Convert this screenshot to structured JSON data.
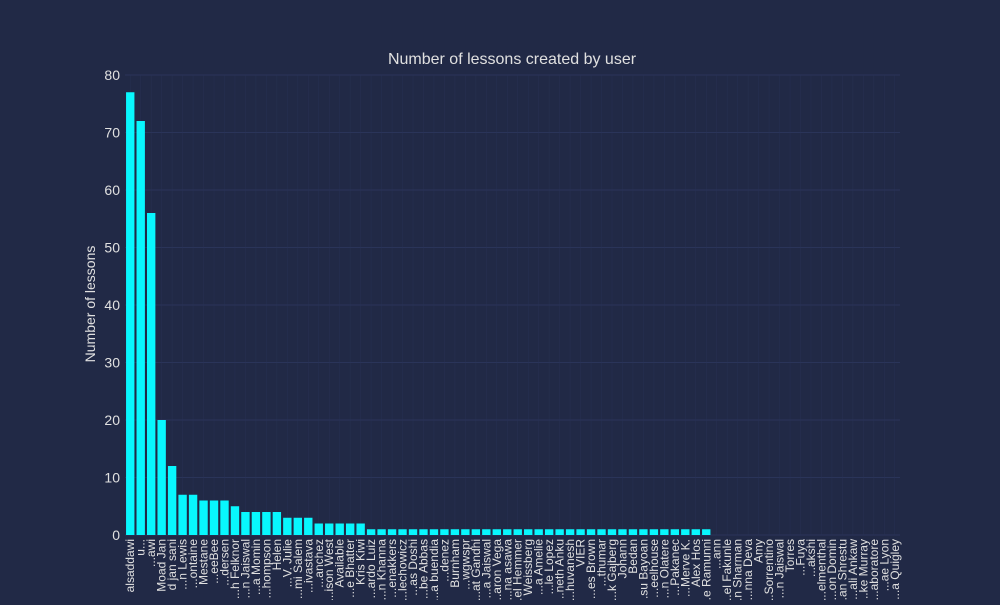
{
  "chart_data": {
    "type": "bar",
    "title": "Number of lessons created by user",
    "xlabel": "",
    "ylabel": "Number of lessons",
    "ylim": [
      0,
      80
    ],
    "yticks": [
      0,
      10,
      20,
      30,
      40,
      50,
      60,
      70,
      80
    ],
    "grid": true,
    "legend": "none",
    "bar_color": "#08F7FE",
    "background_color": "#212946",
    "grid_color": "#2A3459",
    "text_color": "#E0E0E0",
    "categories": [
      "alsaddawi",
      "u...",
      "...awi",
      "Moad Jan",
      "d jan sani",
      "...n Lewis",
      "...ontaine",
      "Mestane",
      "...eeBee",
      "...dersen",
      "...h Felknor",
      "...n Jaiswal",
      "...a Momin",
      "...hompson",
      "Helen",
      "...V. Julie",
      "...mi Salem",
      "...ivastava",
      "...anchez",
      "...ison West",
      "Available",
      "...e Bhatter",
      "Kris Kiwi",
      "...ardo Luiz",
      "...n Khanna",
      "...enakkers",
      "...lechowicz",
      "...as Doshi",
      "...be Abbas",
      "...a buendia",
      "...denez",
      "Burnham",
      "...wgwspr",
      "...at Gandhi",
      "...a Jaiswal",
      "...aron Vega",
      "...na asawa",
      "...el Hemmer",
      "Weissberg",
      "...a Amelie",
      "...le Lopez",
      "...neth Anku",
      "...huvanesh",
      "VIER",
      "...es Brown",
      "...thumar",
      "...k Gajberg",
      "Johann",
      "Bedan",
      "...su Bayoan",
      "...eelhouse",
      "...n Olatere",
      "...Pakanec",
      "...Merve K.",
      "Alex Hos",
      "...e Ramunni",
      "...ann",
      "...el Fakunle",
      "...n Sharman",
      "...nna Deva",
      "Amy",
      "...Sorrentino",
      "...n Jaiswal",
      "Torres",
      "...Fuya",
      "...akshi",
      "...elmenthal",
      "...on Domin",
      "...an Shrestu",
      "...ali Ankaw",
      "...ke Murray",
      "...aboratore",
      "...ae Lyon",
      "...a Quigley"
    ],
    "values": [
      77,
      72,
      56,
      20,
      12,
      7,
      7,
      6,
      6,
      6,
      5,
      4,
      4,
      4,
      4,
      3,
      3,
      3,
      2,
      2,
      2,
      2,
      2,
      1,
      1,
      1,
      1,
      1,
      1,
      1,
      1,
      1,
      1,
      1,
      1,
      1,
      1,
      1,
      1,
      1,
      1,
      1,
      1,
      1,
      1,
      1,
      1,
      1,
      1,
      1,
      1,
      1,
      1,
      1,
      1,
      1,
      0,
      0,
      0,
      0,
      0,
      0,
      0,
      0,
      0,
      0,
      0,
      0,
      0,
      0,
      0,
      0,
      0,
      0
    ]
  }
}
